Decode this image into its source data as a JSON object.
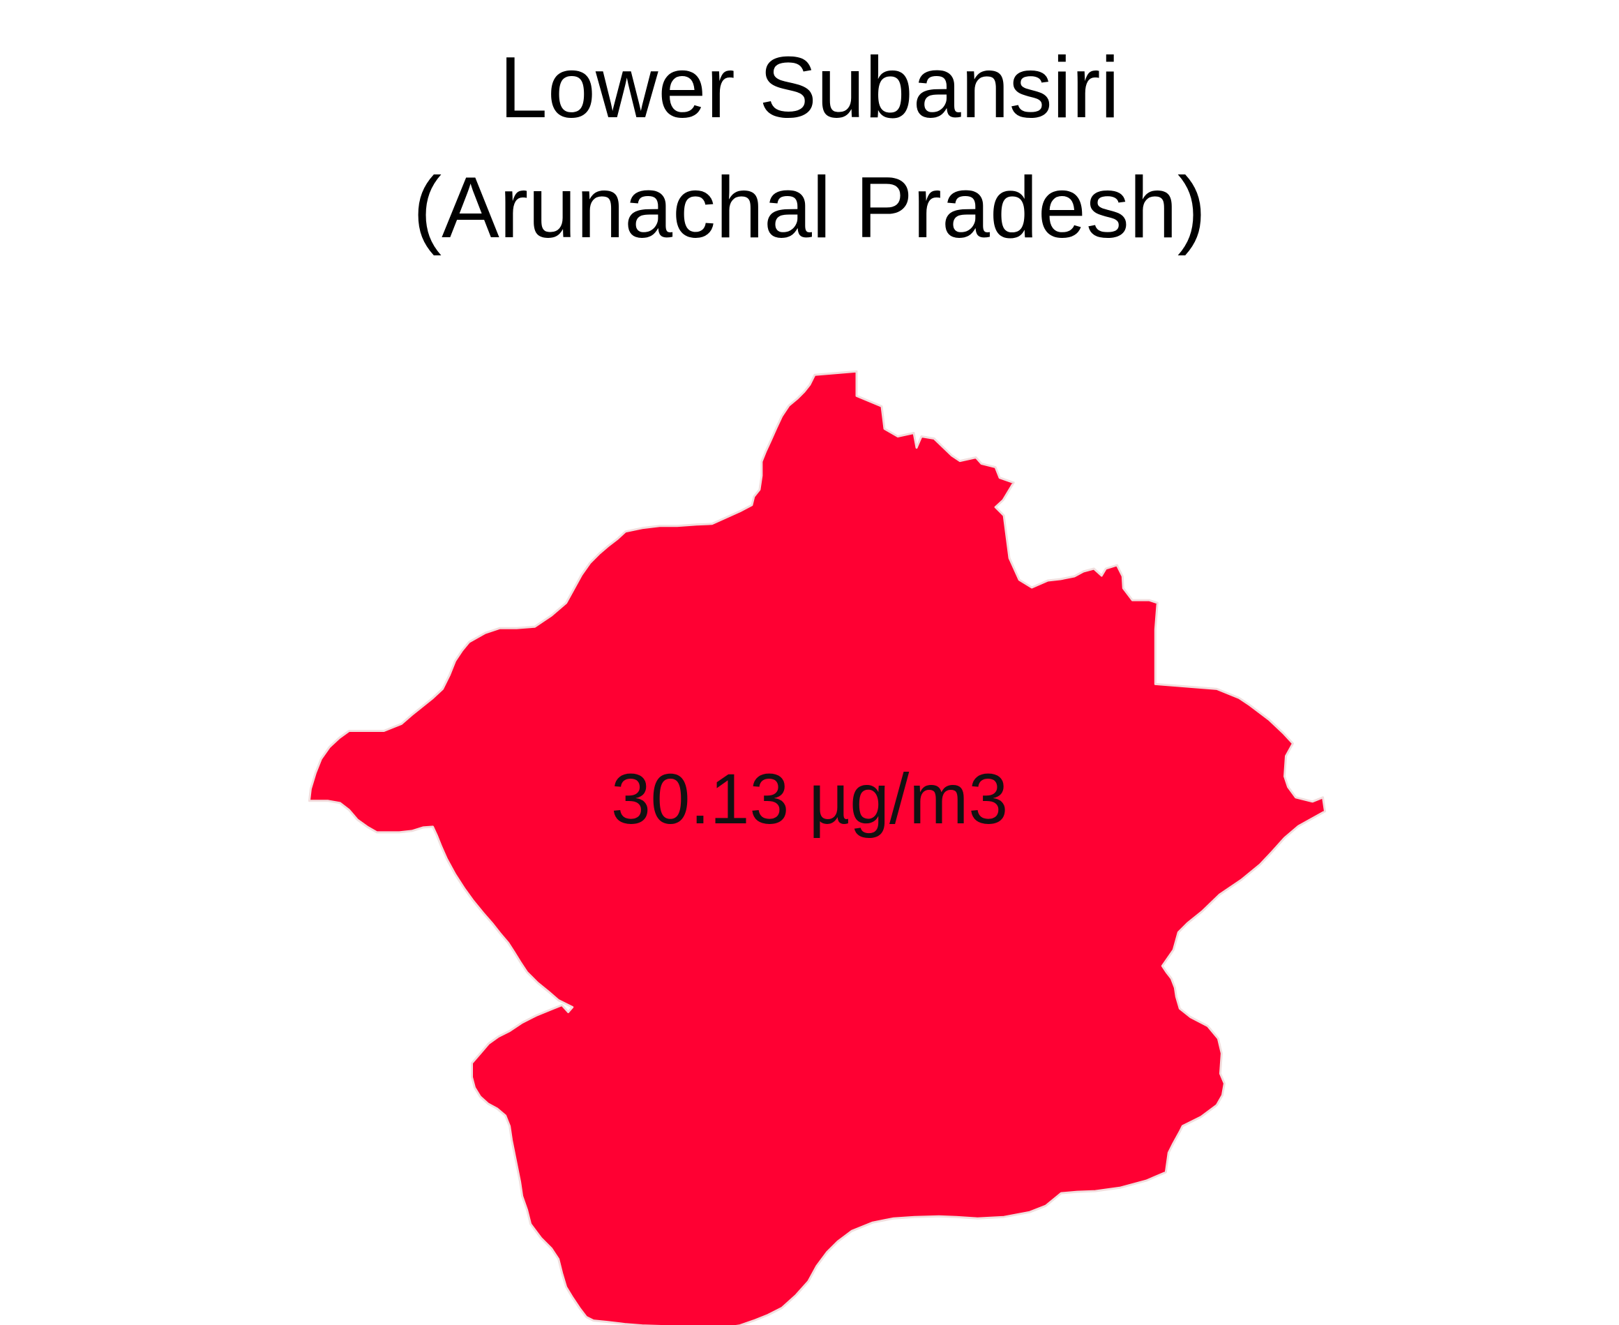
{
  "title": {
    "line1": "Lower Subansiri",
    "line2": "(Arunachal Pradesh)"
  },
  "region": {
    "fill_color": "#ff0033",
    "border_color": "#f2dede"
  },
  "label": {
    "value": "30.13 µg/m3"
  },
  "background_color": "#ffffff"
}
